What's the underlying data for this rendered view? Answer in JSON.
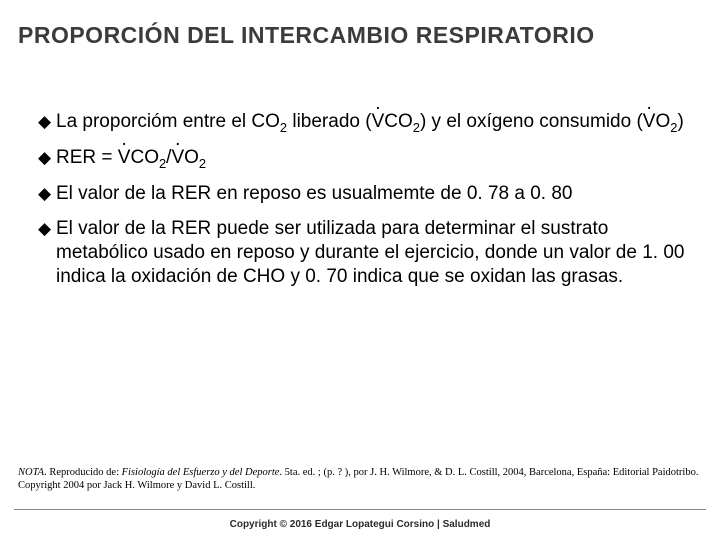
{
  "title": "PROPORCIÓN DEL INTERCAMBIO RESPIRATORIO",
  "bullets": {
    "b1_pre": "La proporcióm entre el CO",
    "b1_sub1": "2",
    "b1_mid1": " liberado (",
    "b1_v1": "V",
    "b1_co": "CO",
    "b1_sub2": "2",
    "b1_mid2": ") y el oxígeno consumido (",
    "b1_v2": "V",
    "b1_o": "O",
    "b1_sub3": "2",
    "b1_end": ")",
    "b2_pre": "RER = ",
    "b2_v1": "V",
    "b2_co": "CO",
    "b2_sub1": "2",
    "b2_slash": "/",
    "b2_v2": "V",
    "b2_o": "O",
    "b2_sub2": "2",
    "b3": "El valor de la RER en reposo es usualmemte de 0. 78 a 0. 80",
    "b4": "El valor de la RER puede ser utilizada para determinar el sustrato metabólico usado en reposo y durante el ejercicio, donde un valor de 1. 00 indica la oxidación de CHO y 0. 70 indica que se oxidan las grasas."
  },
  "footnote": {
    "nota": "NOTA",
    "pre": ". Reproducido de: ",
    "book": "Fisiología del Esfuerzo y del Deporte",
    "rest": ". 5ta. ed. ; (p. ? ), por J. H. Wilmore, & D. L. Costill, 2004, Barcelona, España: Editorial Paidotribo. Copyright 2004 por Jack H. Wilmore y David L. Costill."
  },
  "copyright": "Copyright © 2016 Edgar Lopategui Corsino | Saludmed",
  "marker": "◆"
}
